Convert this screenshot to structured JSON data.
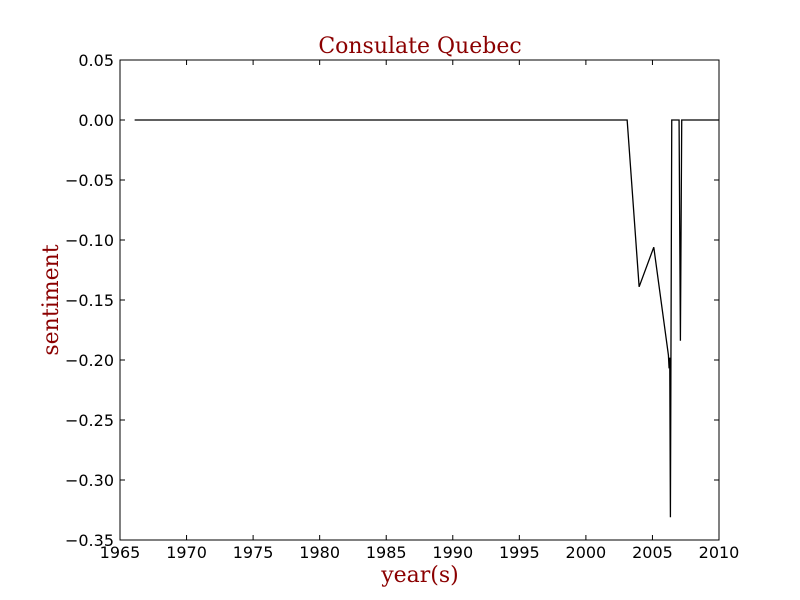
{
  "chart_data": {
    "type": "line",
    "title": "Consulate Quebec",
    "xlabel": "year(s)",
    "ylabel": "sentiment",
    "xlim": [
      1965,
      2010
    ],
    "ylim": [
      -0.35,
      0.05
    ],
    "xticks": [
      1965,
      1970,
      1975,
      1980,
      1985,
      1990,
      1995,
      2000,
      2005,
      2010
    ],
    "xtick_labels": [
      "1965",
      "1970",
      "1975",
      "1980",
      "1985",
      "1990",
      "1995",
      "2000",
      "2005",
      "2010"
    ],
    "yticks": [
      0.05,
      0.0,
      -0.05,
      -0.1,
      -0.15,
      -0.2,
      -0.25,
      -0.3,
      -0.35
    ],
    "ytick_labels": [
      "0.05",
      "0.00",
      "−0.05",
      "−0.10",
      "−0.15",
      "−0.20",
      "−0.25",
      "−0.30",
      "−0.35"
    ],
    "grid": false,
    "series": [
      {
        "x": [
          1966.1,
          2003.1,
          2004.0,
          2005.1,
          2006.2,
          2006.25,
          2006.3,
          2006.35,
          2006.45,
          2006.5,
          2007.0,
          2007.1,
          2007.2,
          2010.0
        ],
        "y": [
          0.0,
          0.0,
          -0.139,
          -0.106,
          -0.196,
          -0.207,
          -0.198,
          -0.331,
          0.0,
          0.0,
          0.0,
          -0.184,
          0.0,
          0.0
        ]
      }
    ],
    "colors": {
      "line": "#000000",
      "text_accent": "#8b0000",
      "axes": "#000000"
    }
  }
}
